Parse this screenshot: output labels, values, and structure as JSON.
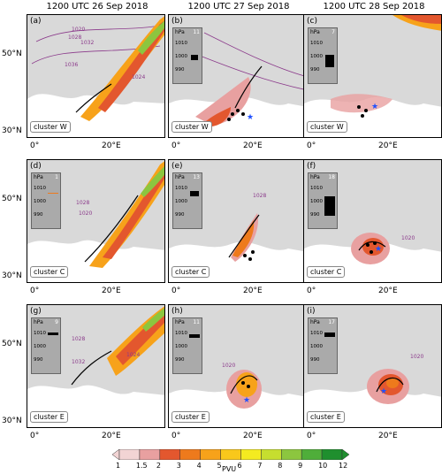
{
  "column_titles": [
    "1200 UTC 26 Sep 2018",
    "1200 UTC 27 Sep 2018",
    "1200 UTC 28 Sep 2018"
  ],
  "panels": [
    {
      "id": "(a)",
      "cluster": "cluster W",
      "has_inset": false
    },
    {
      "id": "(b)",
      "cluster": "cluster W",
      "has_inset": true,
      "n": "11"
    },
    {
      "id": "(c)",
      "cluster": "cluster W",
      "has_inset": true,
      "n": "7"
    },
    {
      "id": "(d)",
      "cluster": "cluster C",
      "has_inset": true,
      "n": "1"
    },
    {
      "id": "(e)",
      "cluster": "cluster C",
      "has_inset": true,
      "n": "13"
    },
    {
      "id": "(f)",
      "cluster": "cluster C",
      "has_inset": true,
      "n": "18"
    },
    {
      "id": "(g)",
      "cluster": "cluster E",
      "has_inset": true,
      "n": "9"
    },
    {
      "id": "(h)",
      "cluster": "cluster E",
      "has_inset": true,
      "n": "11"
    },
    {
      "id": "(i)",
      "cluster": "cluster E",
      "has_inset": true,
      "n": "17"
    }
  ],
  "inset": {
    "unit": "hPa",
    "ticks": [
      "1010",
      "1000",
      "990"
    ]
  },
  "lat_labels": [
    "50°N",
    "30°N"
  ],
  "lon_labels": [
    "0°",
    "20°E"
  ],
  "isobar_labels": {
    "a": [
      "1020",
      "1028",
      "1032",
      "1036",
      "1024"
    ],
    "d": [
      "1028",
      "1020"
    ],
    "e": [
      "1028"
    ],
    "f": [
      "1020"
    ],
    "g": [
      "1028",
      "1024",
      "1032"
    ],
    "h": [
      "1020"
    ],
    "i": [
      "1020"
    ]
  },
  "colorbar": {
    "unit": "PVU",
    "ticks": [
      "1",
      "1.5",
      "2",
      "3",
      "4",
      "5",
      "6",
      "7",
      "8",
      "9",
      "10",
      "12"
    ],
    "colors": [
      "#f2d4d4",
      "#e8a0a0",
      "#e3572e",
      "#ee7a1c",
      "#f7a21a",
      "#f9c81b",
      "#f4eb20",
      "#c6de2f",
      "#8cc63f",
      "#4fae3a",
      "#1f8f2e"
    ]
  }
}
